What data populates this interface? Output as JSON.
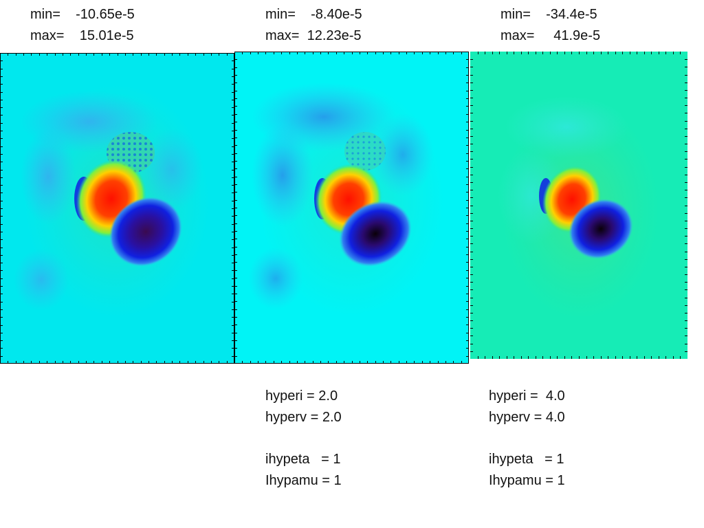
{
  "panels": [
    {
      "min": "min=    -10.65e-5",
      "max": "max=    15.01e-5",
      "background": "#00e8ee",
      "params": []
    },
    {
      "min": "min=    -8.40e-5",
      "max": "max=  12.23e-5",
      "background": "#00f4f6",
      "params": [
        "hyperi = 2.0",
        "hyperv = 2.0",
        "",
        "ihypeta   = 1",
        "Ihypamu = 1"
      ]
    },
    {
      "min": "min=    -34.4e-5",
      "max": "max=     41.9e-5",
      "background": "#16ecb6",
      "params": [
        "hyperi =  4.0",
        "hyperv = 4.0",
        "",
        "ihypeta   = 1",
        "Ihypamu = 1"
      ]
    }
  ],
  "colors": {
    "red": "#ff1a00",
    "yellow": "#ffe000",
    "green": "#22dd44",
    "blue": "#1020e0",
    "navy": "#1a0a80",
    "dark": "#10001a",
    "lightblue": "#4ab0f0"
  }
}
